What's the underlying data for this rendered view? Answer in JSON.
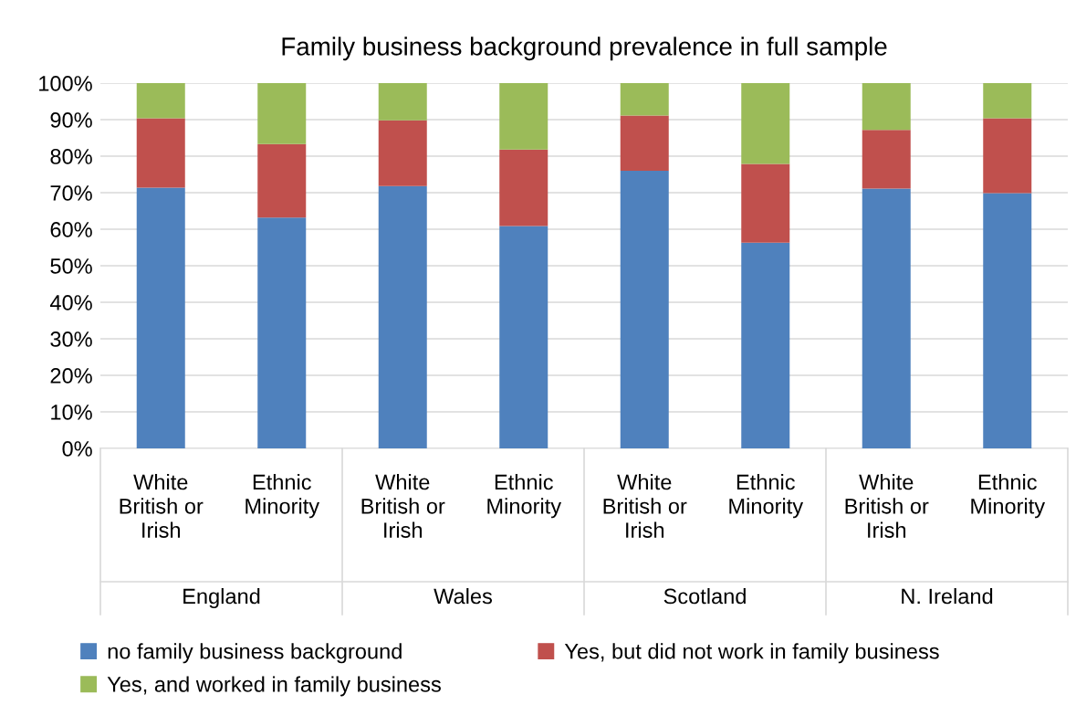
{
  "chart_data": {
    "type": "bar",
    "title": "Family business background prevalence in full sample",
    "categories": [
      "White British or Irish",
      "Ethnic Minority",
      "White British or Irish",
      "Ethnic Minority",
      "White British or Irish",
      "Ethnic Minority",
      "White British or Irish",
      "Ethnic Minority"
    ],
    "annotations": [
      "England",
      "Wales",
      "Scotland",
      "N. Ireland"
    ],
    "stacked": true,
    "series": [
      {
        "name": "no family business background",
        "color": "#4f81bd",
        "values": [
          71.4,
          63.2,
          71.8,
          60.9,
          76.0,
          56.3,
          71.1,
          69.9
        ]
      },
      {
        "name": "Yes, but did not work in family business",
        "color": "#c0504d",
        "values": [
          19.0,
          20.1,
          18.0,
          20.9,
          15.1,
          21.6,
          16.1,
          20.5
        ]
      },
      {
        "name": "Yes, and worked in family business",
        "color": "#9bbb59",
        "values": [
          9.6,
          16.7,
          10.2,
          18.2,
          8.9,
          22.1,
          12.8,
          9.6
        ]
      }
    ],
    "ylim": [
      0,
      100
    ],
    "yticks": [
      {
        "value": 0,
        "label": "0%"
      },
      {
        "value": 10,
        "label": "10%"
      },
      {
        "value": 20,
        "label": "20%"
      },
      {
        "value": 30,
        "label": "30%"
      },
      {
        "value": 40,
        "label": "40%"
      },
      {
        "value": 50,
        "label": "50%"
      },
      {
        "value": 60,
        "label": "60%"
      },
      {
        "value": 70,
        "label": "70%"
      },
      {
        "value": 80,
        "label": "80%"
      },
      {
        "value": 90,
        "label": "90%"
      },
      {
        "value": 100,
        "label": "100%"
      }
    ],
    "grid": "y",
    "legend": "bottom"
  }
}
